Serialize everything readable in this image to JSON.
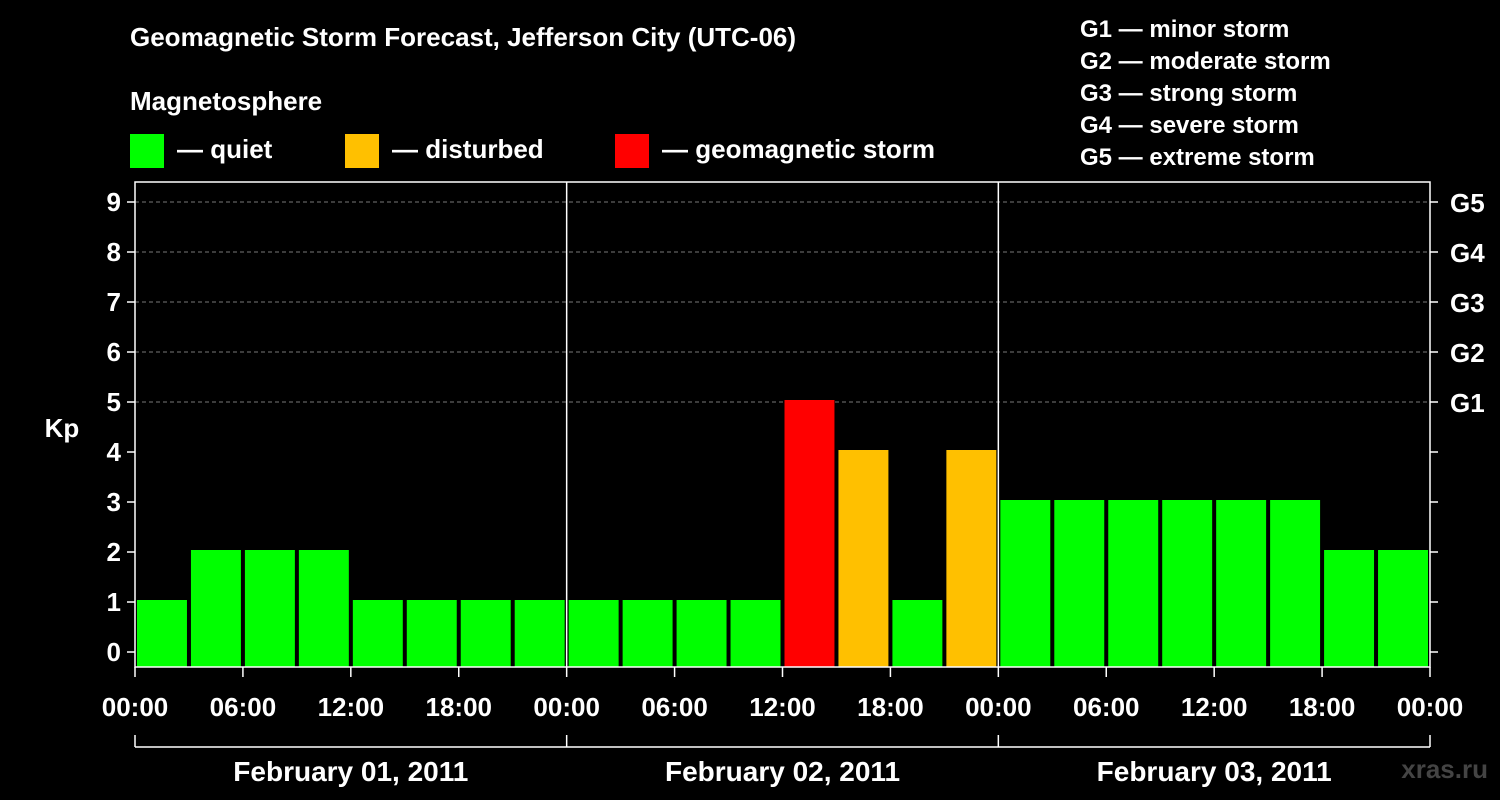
{
  "title": "Geomagnetic Storm Forecast, Jefferson City (UTC-06)",
  "magnetosphere": {
    "heading": "Magnetosphere",
    "legend": [
      {
        "label": "— quiet",
        "color": "#00ff00"
      },
      {
        "label": "— disturbed",
        "color": "#ffc000"
      },
      {
        "label": "— geomagnetic storm",
        "color": "#ff0000"
      }
    ]
  },
  "storm_scale": [
    {
      "level": "G1",
      "label": "G1 — minor storm"
    },
    {
      "level": "G2",
      "label": "G2 — moderate storm"
    },
    {
      "level": "G3",
      "label": "G3 — strong storm"
    },
    {
      "level": "G4",
      "label": "G4 — severe storm"
    },
    {
      "level": "G5",
      "label": "G5 — extreme storm"
    }
  ],
  "watermark": "xras.ru",
  "chart_data": {
    "type": "bar",
    "title": "Geomagnetic Storm Forecast, Jefferson City (UTC-06)",
    "ylabel": "Kp",
    "xlabel": "",
    "ylim": [
      0,
      9
    ],
    "y_ticks": [
      "0",
      "1",
      "2",
      "3",
      "4",
      "5",
      "6",
      "7",
      "8",
      "9"
    ],
    "right_axis_ticks": [
      {
        "kp": 5,
        "label": "G1"
      },
      {
        "kp": 6,
        "label": "G2"
      },
      {
        "kp": 7,
        "label": "G3"
      },
      {
        "kp": 8,
        "label": "G4"
      },
      {
        "kp": 9,
        "label": "G5"
      }
    ],
    "x_tick_labels": [
      "00:00",
      "06:00",
      "12:00",
      "18:00",
      "00:00",
      "06:00",
      "12:00",
      "18:00",
      "00:00",
      "06:00",
      "12:00",
      "18:00",
      "00:00"
    ],
    "days": [
      "February 01, 2011",
      "February 02, 2011",
      "February 03, 2011"
    ],
    "interval_hours": 3,
    "values": [
      1,
      2,
      2,
      2,
      1,
      1,
      1,
      1,
      1,
      1,
      1,
      1,
      5,
      4,
      1,
      4,
      3,
      3,
      3,
      3,
      3,
      3,
      2,
      2
    ],
    "status": [
      "quiet",
      "quiet",
      "quiet",
      "quiet",
      "quiet",
      "quiet",
      "quiet",
      "quiet",
      "quiet",
      "quiet",
      "quiet",
      "quiet",
      "storm",
      "disturbed",
      "quiet",
      "disturbed",
      "quiet",
      "quiet",
      "quiet",
      "quiet",
      "quiet",
      "quiet",
      "quiet",
      "quiet"
    ],
    "status_colors": {
      "quiet": "#00ff00",
      "disturbed": "#ffc000",
      "storm": "#ff0000"
    },
    "grid": true
  }
}
